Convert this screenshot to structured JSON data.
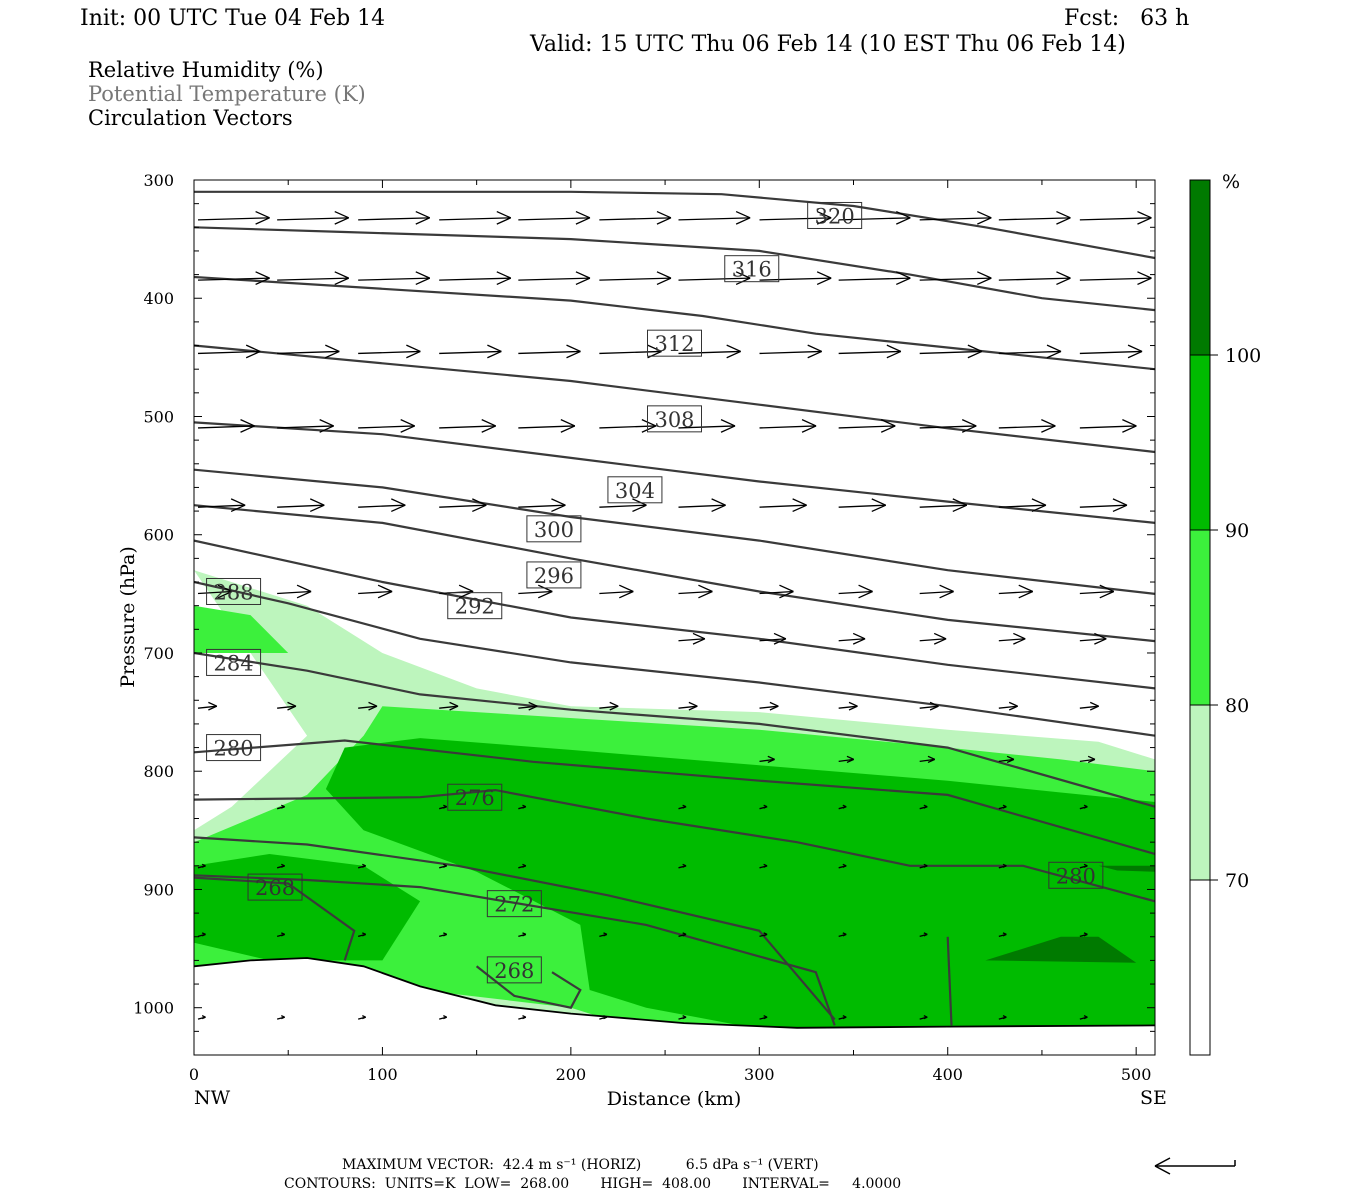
{
  "header": {
    "init": "Init: 00 UTC Tue 04 Feb 14",
    "fcst": "Fcst:   63 h",
    "valid": "Valid: 15 UTC Thu 06 Feb 14 (10 EST Thu 06 Feb 14)"
  },
  "legend": {
    "rh": "Relative Humidity (%)",
    "theta": "Potential Temperature (K)",
    "vectors": "Circulation Vectors"
  },
  "footer": {
    "max_vector": "MAXIMUM VECTOR:  42.4 m s⁻¹ (HORIZ)          6.5 dPa s⁻¹ (VERT)",
    "contours": "CONTOURS:  UNITS=K  LOW=  268.00       HIGH=  408.00       INTERVAL=     4.0000"
  },
  "colorbar": {
    "unit": "%",
    "ticks": [
      "70",
      "80",
      "90",
      "100"
    ],
    "colors": [
      "#ffffff",
      "#bdf5bd",
      "#3cf03c",
      "#00bb00",
      "#007a00"
    ]
  },
  "colors": {
    "contour": "#3a3a3a",
    "frame": "#000000"
  },
  "chart_data": {
    "type": "cross-section",
    "xlabel": "Distance (km)",
    "ylabel": "Pressure (hPa)",
    "xlim": [
      0,
      510
    ],
    "ylim": [
      1040,
      300
    ],
    "x_ticks": [
      0,
      100,
      200,
      300,
      400,
      500
    ],
    "y_ticks": [
      300,
      400,
      500,
      600,
      700,
      800,
      900,
      1000
    ],
    "x_end_labels": [
      "NW",
      "SE"
    ],
    "theta_contour_labels": [
      {
        "value": "320",
        "x": 340,
        "p": 330
      },
      {
        "value": "316",
        "x": 296,
        "p": 375
      },
      {
        "value": "312",
        "x": 255,
        "p": 438
      },
      {
        "value": "308",
        "x": 255,
        "p": 502
      },
      {
        "value": "304",
        "x": 234,
        "p": 562
      },
      {
        "value": "300",
        "x": 191,
        "p": 595
      },
      {
        "value": "296",
        "x": 191,
        "p": 634
      },
      {
        "value": "292",
        "x": 149,
        "p": 660
      },
      {
        "value": "288",
        "x": 21,
        "p": 648
      },
      {
        "value": "284",
        "x": 21,
        "p": 708
      },
      {
        "value": "280",
        "x": 21,
        "p": 780
      },
      {
        "value": "276",
        "x": 149,
        "p": 822
      },
      {
        "value": "272",
        "x": 170,
        "p": 912
      },
      {
        "value": "268",
        "x": 43,
        "p": 898
      },
      {
        "value": "268",
        "x": 170,
        "p": 968
      },
      {
        "value": "280",
        "x": 468,
        "p": 888
      }
    ],
    "theta_lines": [
      [
        [
          0,
          310
        ],
        [
          100,
          310
        ],
        [
          200,
          310
        ],
        [
          280,
          312
        ],
        [
          350,
          322
        ],
        [
          420,
          340
        ],
        [
          510,
          366
        ]
      ],
      [
        [
          0,
          340
        ],
        [
          80,
          344
        ],
        [
          200,
          350
        ],
        [
          300,
          360
        ],
        [
          380,
          380
        ],
        [
          450,
          400
        ],
        [
          510,
          410
        ]
      ],
      [
        [
          0,
          382
        ],
        [
          100,
          392
        ],
        [
          200,
          402
        ],
        [
          270,
          415
        ],
        [
          330,
          430
        ],
        [
          420,
          445
        ],
        [
          510,
          460
        ]
      ],
      [
        [
          0,
          440
        ],
        [
          100,
          455
        ],
        [
          200,
          470
        ],
        [
          300,
          490
        ],
        [
          400,
          510
        ],
        [
          510,
          530
        ]
      ],
      [
        [
          0,
          505
        ],
        [
          100,
          515
        ],
        [
          200,
          535
        ],
        [
          300,
          555
        ],
        [
          400,
          572
        ],
        [
          510,
          590
        ]
      ],
      [
        [
          0,
          545
        ],
        [
          100,
          560
        ],
        [
          200,
          585
        ],
        [
          300,
          605
        ],
        [
          400,
          630
        ],
        [
          510,
          650
        ]
      ],
      [
        [
          0,
          575
        ],
        [
          100,
          590
        ],
        [
          200,
          620
        ],
        [
          300,
          648
        ],
        [
          400,
          672
        ],
        [
          510,
          690
        ]
      ],
      [
        [
          0,
          605
        ],
        [
          100,
          640
        ],
        [
          200,
          670
        ],
        [
          300,
          688
        ],
        [
          400,
          710
        ],
        [
          510,
          730
        ]
      ],
      [
        [
          0,
          640
        ],
        [
          50,
          658
        ],
        [
          120,
          688
        ],
        [
          200,
          708
        ],
        [
          300,
          725
        ],
        [
          400,
          745
        ],
        [
          510,
          770
        ]
      ],
      [
        [
          0,
          700
        ],
        [
          60,
          715
        ],
        [
          120,
          735
        ],
        [
          200,
          748
        ],
        [
          300,
          760
        ],
        [
          400,
          780
        ],
        [
          510,
          830
        ]
      ],
      [
        [
          0,
          784
        ],
        [
          80,
          774
        ],
        [
          180,
          792
        ],
        [
          300,
          808
        ],
        [
          400,
          820
        ],
        [
          510,
          870
        ]
      ],
      [
        [
          0,
          824
        ],
        [
          120,
          822
        ],
        [
          160,
          816
        ],
        [
          240,
          840
        ],
        [
          320,
          860
        ],
        [
          380,
          880
        ],
        [
          440,
          880
        ],
        [
          510,
          910
        ]
      ],
      [
        [
          0,
          856
        ],
        [
          60,
          862
        ],
        [
          140,
          880
        ],
        [
          220,
          905
        ],
        [
          300,
          935
        ],
        [
          340,
          1010
        ]
      ],
      [
        [
          0,
          888
        ],
        [
          60,
          892
        ],
        [
          120,
          898
        ],
        [
          240,
          930
        ],
        [
          330,
          970
        ],
        [
          340,
          1015
        ]
      ],
      [
        [
          0,
          890
        ],
        [
          50,
          895
        ],
        [
          85,
          935
        ],
        [
          80,
          960
        ]
      ],
      [
        [
          400,
          940
        ],
        [
          402,
          1015
        ]
      ],
      [
        [
          150,
          965
        ],
        [
          170,
          990
        ],
        [
          200,
          1000
        ],
        [
          205,
          985
        ],
        [
          190,
          970
        ]
      ]
    ],
    "rh_bands": [
      {
        "level": 1,
        "label": "70-80",
        "poly": [
          [
            0,
            630
          ],
          [
            60,
            660
          ],
          [
            100,
            700
          ],
          [
            150,
            730
          ],
          [
            200,
            745
          ],
          [
            300,
            750
          ],
          [
            400,
            765
          ],
          [
            480,
            775
          ],
          [
            510,
            790
          ],
          [
            510,
            1040
          ],
          [
            0,
            1040
          ],
          [
            0,
            850
          ],
          [
            20,
            830
          ],
          [
            40,
            800
          ],
          [
            60,
            770
          ]
        ]
      },
      {
        "level": 2,
        "label": "80-90",
        "poly": [
          [
            0,
            660
          ],
          [
            30,
            668
          ],
          [
            50,
            700
          ],
          [
            0,
            700
          ],
          [
            0,
            780
          ],
          [
            0,
            860
          ],
          [
            60,
            820
          ],
          [
            90,
            770
          ],
          [
            100,
            745
          ],
          [
            150,
            750
          ],
          [
            300,
            765
          ],
          [
            400,
            780
          ],
          [
            460,
            790
          ],
          [
            510,
            800
          ],
          [
            510,
            1030
          ],
          [
            300,
            1020
          ],
          [
            220,
            1010
          ],
          [
            200,
            1000
          ],
          [
            120,
            985
          ],
          [
            60,
            980
          ],
          [
            0,
            975
          ]
        ]
      },
      {
        "level": 3,
        "label": "90-100",
        "poly": [
          [
            70,
            815
          ],
          [
            80,
            780
          ],
          [
            120,
            772
          ],
          [
            200,
            782
          ],
          [
            300,
            795
          ],
          [
            400,
            808
          ],
          [
            460,
            818
          ],
          [
            510,
            826
          ],
          [
            510,
            1025
          ],
          [
            300,
            1018
          ],
          [
            240,
            1000
          ],
          [
            210,
            985
          ],
          [
            205,
            930
          ],
          [
            150,
            885
          ],
          [
            90,
            850
          ]
        ]
      },
      {
        "level": 3,
        "label": "90-100",
        "poly": [
          [
            0,
            880
          ],
          [
            40,
            870
          ],
          [
            90,
            880
          ],
          [
            120,
            910
          ],
          [
            100,
            960
          ],
          [
            40,
            960
          ],
          [
            0,
            945
          ]
        ]
      },
      {
        "level": 4,
        "label": "100+",
        "poly": [
          [
            420,
            960
          ],
          [
            460,
            940
          ],
          [
            480,
            940
          ],
          [
            500,
            962
          ]
        ]
      },
      {
        "level": 4,
        "label": "100+",
        "poly": [
          [
            480,
            880
          ],
          [
            510,
            880
          ],
          [
            510,
            885
          ],
          [
            490,
            884
          ]
        ]
      }
    ],
    "vectors": {
      "rows": [
        {
          "p": 332,
          "len": 38,
          "xs": [
            0,
            42,
            85,
            128,
            170,
            213,
            255,
            298,
            340,
            383,
            425,
            468
          ]
        },
        {
          "p": 383,
          "len": 38,
          "xs": [
            0,
            42,
            85,
            128,
            170,
            213,
            255,
            298,
            340,
            383,
            425,
            468
          ]
        },
        {
          "p": 445,
          "len": 33,
          "xs": [
            0,
            42,
            85,
            128,
            170,
            213,
            255,
            298,
            340,
            383,
            425,
            468
          ]
        },
        {
          "p": 508,
          "len": 30,
          "xs": [
            0,
            42,
            85,
            128,
            170,
            213,
            255,
            298,
            340,
            383,
            425,
            468
          ]
        },
        {
          "p": 575,
          "len": 25,
          "xs": [
            0,
            42,
            85,
            128,
            170,
            213,
            255,
            298,
            340,
            383,
            425,
            468
          ]
        },
        {
          "p": 648,
          "len": 18,
          "xs": [
            0,
            42,
            85,
            128,
            170,
            213,
            255,
            298,
            340,
            383,
            425,
            468
          ]
        },
        {
          "p": 688,
          "len": 14,
          "xs": [
            255,
            298,
            340,
            383,
            425,
            468
          ]
        },
        {
          "p": 745,
          "len": 10,
          "xs": [
            0,
            42,
            85,
            128,
            170,
            213,
            255,
            298,
            340,
            383,
            425,
            468
          ]
        },
        {
          "p": 790,
          "len": 8,
          "xs": [
            298,
            340,
            383,
            425,
            468
          ]
        },
        {
          "p": 830,
          "len": 4,
          "xs": [
            42,
            128,
            170,
            255,
            298,
            340,
            383,
            425,
            468
          ]
        },
        {
          "p": 880,
          "len": 4,
          "xs": [
            0,
            42,
            85,
            128,
            170,
            255,
            298,
            340,
            383,
            425,
            468
          ]
        },
        {
          "p": 938,
          "len": 4,
          "xs": [
            0,
            42,
            85,
            128,
            170,
            213,
            255,
            298,
            340,
            383,
            425,
            468
          ]
        },
        {
          "p": 1008,
          "len": 4,
          "xs": [
            0,
            42,
            85,
            128,
            170,
            213,
            255,
            298,
            340,
            383,
            425,
            468
          ]
        }
      ]
    },
    "terrain": [
      [
        0,
        965
      ],
      [
        30,
        960
      ],
      [
        60,
        958
      ],
      [
        90,
        965
      ],
      [
        120,
        982
      ],
      [
        160,
        998
      ],
      [
        200,
        1005
      ],
      [
        260,
        1013
      ],
      [
        320,
        1017
      ],
      [
        400,
        1016
      ],
      [
        510,
        1015
      ]
    ]
  }
}
